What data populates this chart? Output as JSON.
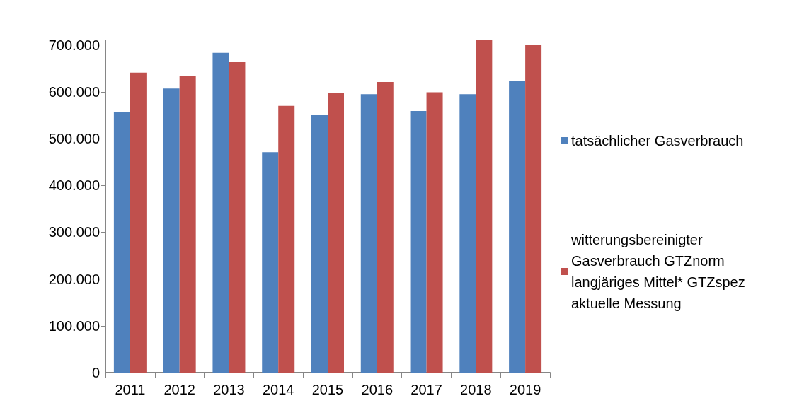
{
  "chart_data": {
    "type": "bar",
    "categories": [
      "2011",
      "2012",
      "2013",
      "2014",
      "2015",
      "2016",
      "2017",
      "2018",
      "2019"
    ],
    "series": [
      {
        "name": "tatsächlicher Gasverbrauch",
        "color": "#4f81bd",
        "values": [
          557000,
          607000,
          683000,
          471000,
          551000,
          595000,
          559000,
          595000,
          623000
        ]
      },
      {
        "name": "witterungsbereinigter Gasverbrauch GTZnorm langjäriges Mittel* GTZspez aktuelle Messung",
        "color": "#c0504d",
        "values": [
          641000,
          634000,
          663000,
          570000,
          597000,
          621000,
          599000,
          710000,
          700000
        ]
      }
    ],
    "ylim": [
      0,
      710000
    ],
    "yticks": [
      {
        "value": 0,
        "label": "0"
      },
      {
        "value": 100000,
        "label": "100.000"
      },
      {
        "value": 200000,
        "label": "200.000"
      },
      {
        "value": 300000,
        "label": "300.000"
      },
      {
        "value": 400000,
        "label": "400.000"
      },
      {
        "value": 500000,
        "label": "500.000"
      },
      {
        "value": 600000,
        "label": "600.000"
      },
      {
        "value": 700000,
        "label": "700.000"
      }
    ],
    "grid": false,
    "legend": "right"
  }
}
